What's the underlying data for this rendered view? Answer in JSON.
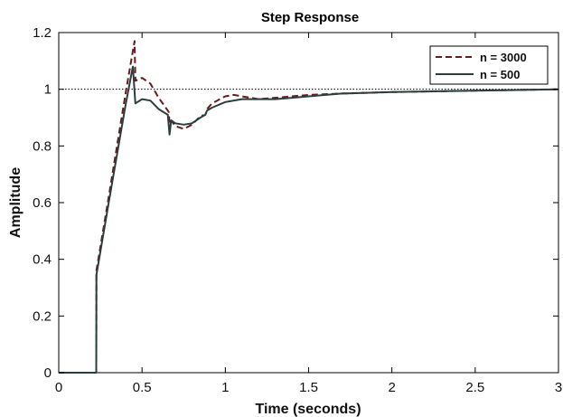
{
  "chart_data": {
    "type": "line",
    "title": "Step Response",
    "xlabel": "Time (seconds)",
    "ylabel": "Amplitude",
    "xlim": [
      0,
      3
    ],
    "ylim": [
      0,
      1.2
    ],
    "xticks": [
      0,
      0.5,
      1,
      1.5,
      2,
      2.5,
      3
    ],
    "xtick_labels": [
      "0",
      "0.5",
      "1",
      "1.5",
      "2",
      "2.5",
      "3"
    ],
    "yticks": [
      0,
      0.2,
      0.4,
      0.6,
      0.8,
      1,
      1.2
    ],
    "ytick_labels": [
      "0",
      "0.2",
      "0.4",
      "0.6",
      "0.8",
      "1",
      "1.2"
    ],
    "reference_line": {
      "y": 1,
      "style": "dotted"
    },
    "grid": false,
    "legend_position": "top-right",
    "series": [
      {
        "name": "n = 3000",
        "color": "#6b1a1a",
        "style": "dashed",
        "x": [
          0,
          0.225,
          0.226,
          0.3,
          0.4,
          0.455,
          0.46,
          0.5,
          0.55,
          0.6,
          0.66,
          0.668,
          0.675,
          0.7,
          0.75,
          0.8,
          0.85,
          0.88,
          0.89,
          0.92,
          1.0,
          1.05,
          1.1,
          1.2,
          1.3,
          1.4,
          1.5,
          1.7,
          2.0,
          2.5,
          3.0
        ],
        "y": [
          0,
          0,
          0.36,
          0.62,
          0.98,
          1.17,
          1.03,
          1.04,
          1.02,
          0.97,
          0.92,
          0.86,
          0.89,
          0.87,
          0.86,
          0.875,
          0.905,
          0.91,
          0.93,
          0.95,
          0.975,
          0.98,
          0.975,
          0.965,
          0.97,
          0.975,
          0.98,
          0.985,
          0.99,
          0.995,
          1.0
        ]
      },
      {
        "name": "n = 500",
        "color": "#2b3e3e",
        "style": "solid",
        "x": [
          0,
          0.225,
          0.226,
          0.3,
          0.4,
          0.445,
          0.46,
          0.5,
          0.55,
          0.6,
          0.655,
          0.665,
          0.675,
          0.7,
          0.75,
          0.8,
          0.85,
          0.88,
          0.89,
          0.92,
          1.0,
          1.1,
          1.2,
          1.3,
          1.4,
          1.5,
          1.7,
          2.0,
          2.5,
          3.0
        ],
        "y": [
          0,
          0,
          0.345,
          0.6,
          0.94,
          1.08,
          0.95,
          0.965,
          0.96,
          0.93,
          0.91,
          0.84,
          0.89,
          0.88,
          0.875,
          0.88,
          0.9,
          0.91,
          0.925,
          0.935,
          0.955,
          0.965,
          0.965,
          0.965,
          0.97,
          0.975,
          0.985,
          0.99,
          0.995,
          1.0
        ]
      }
    ]
  }
}
